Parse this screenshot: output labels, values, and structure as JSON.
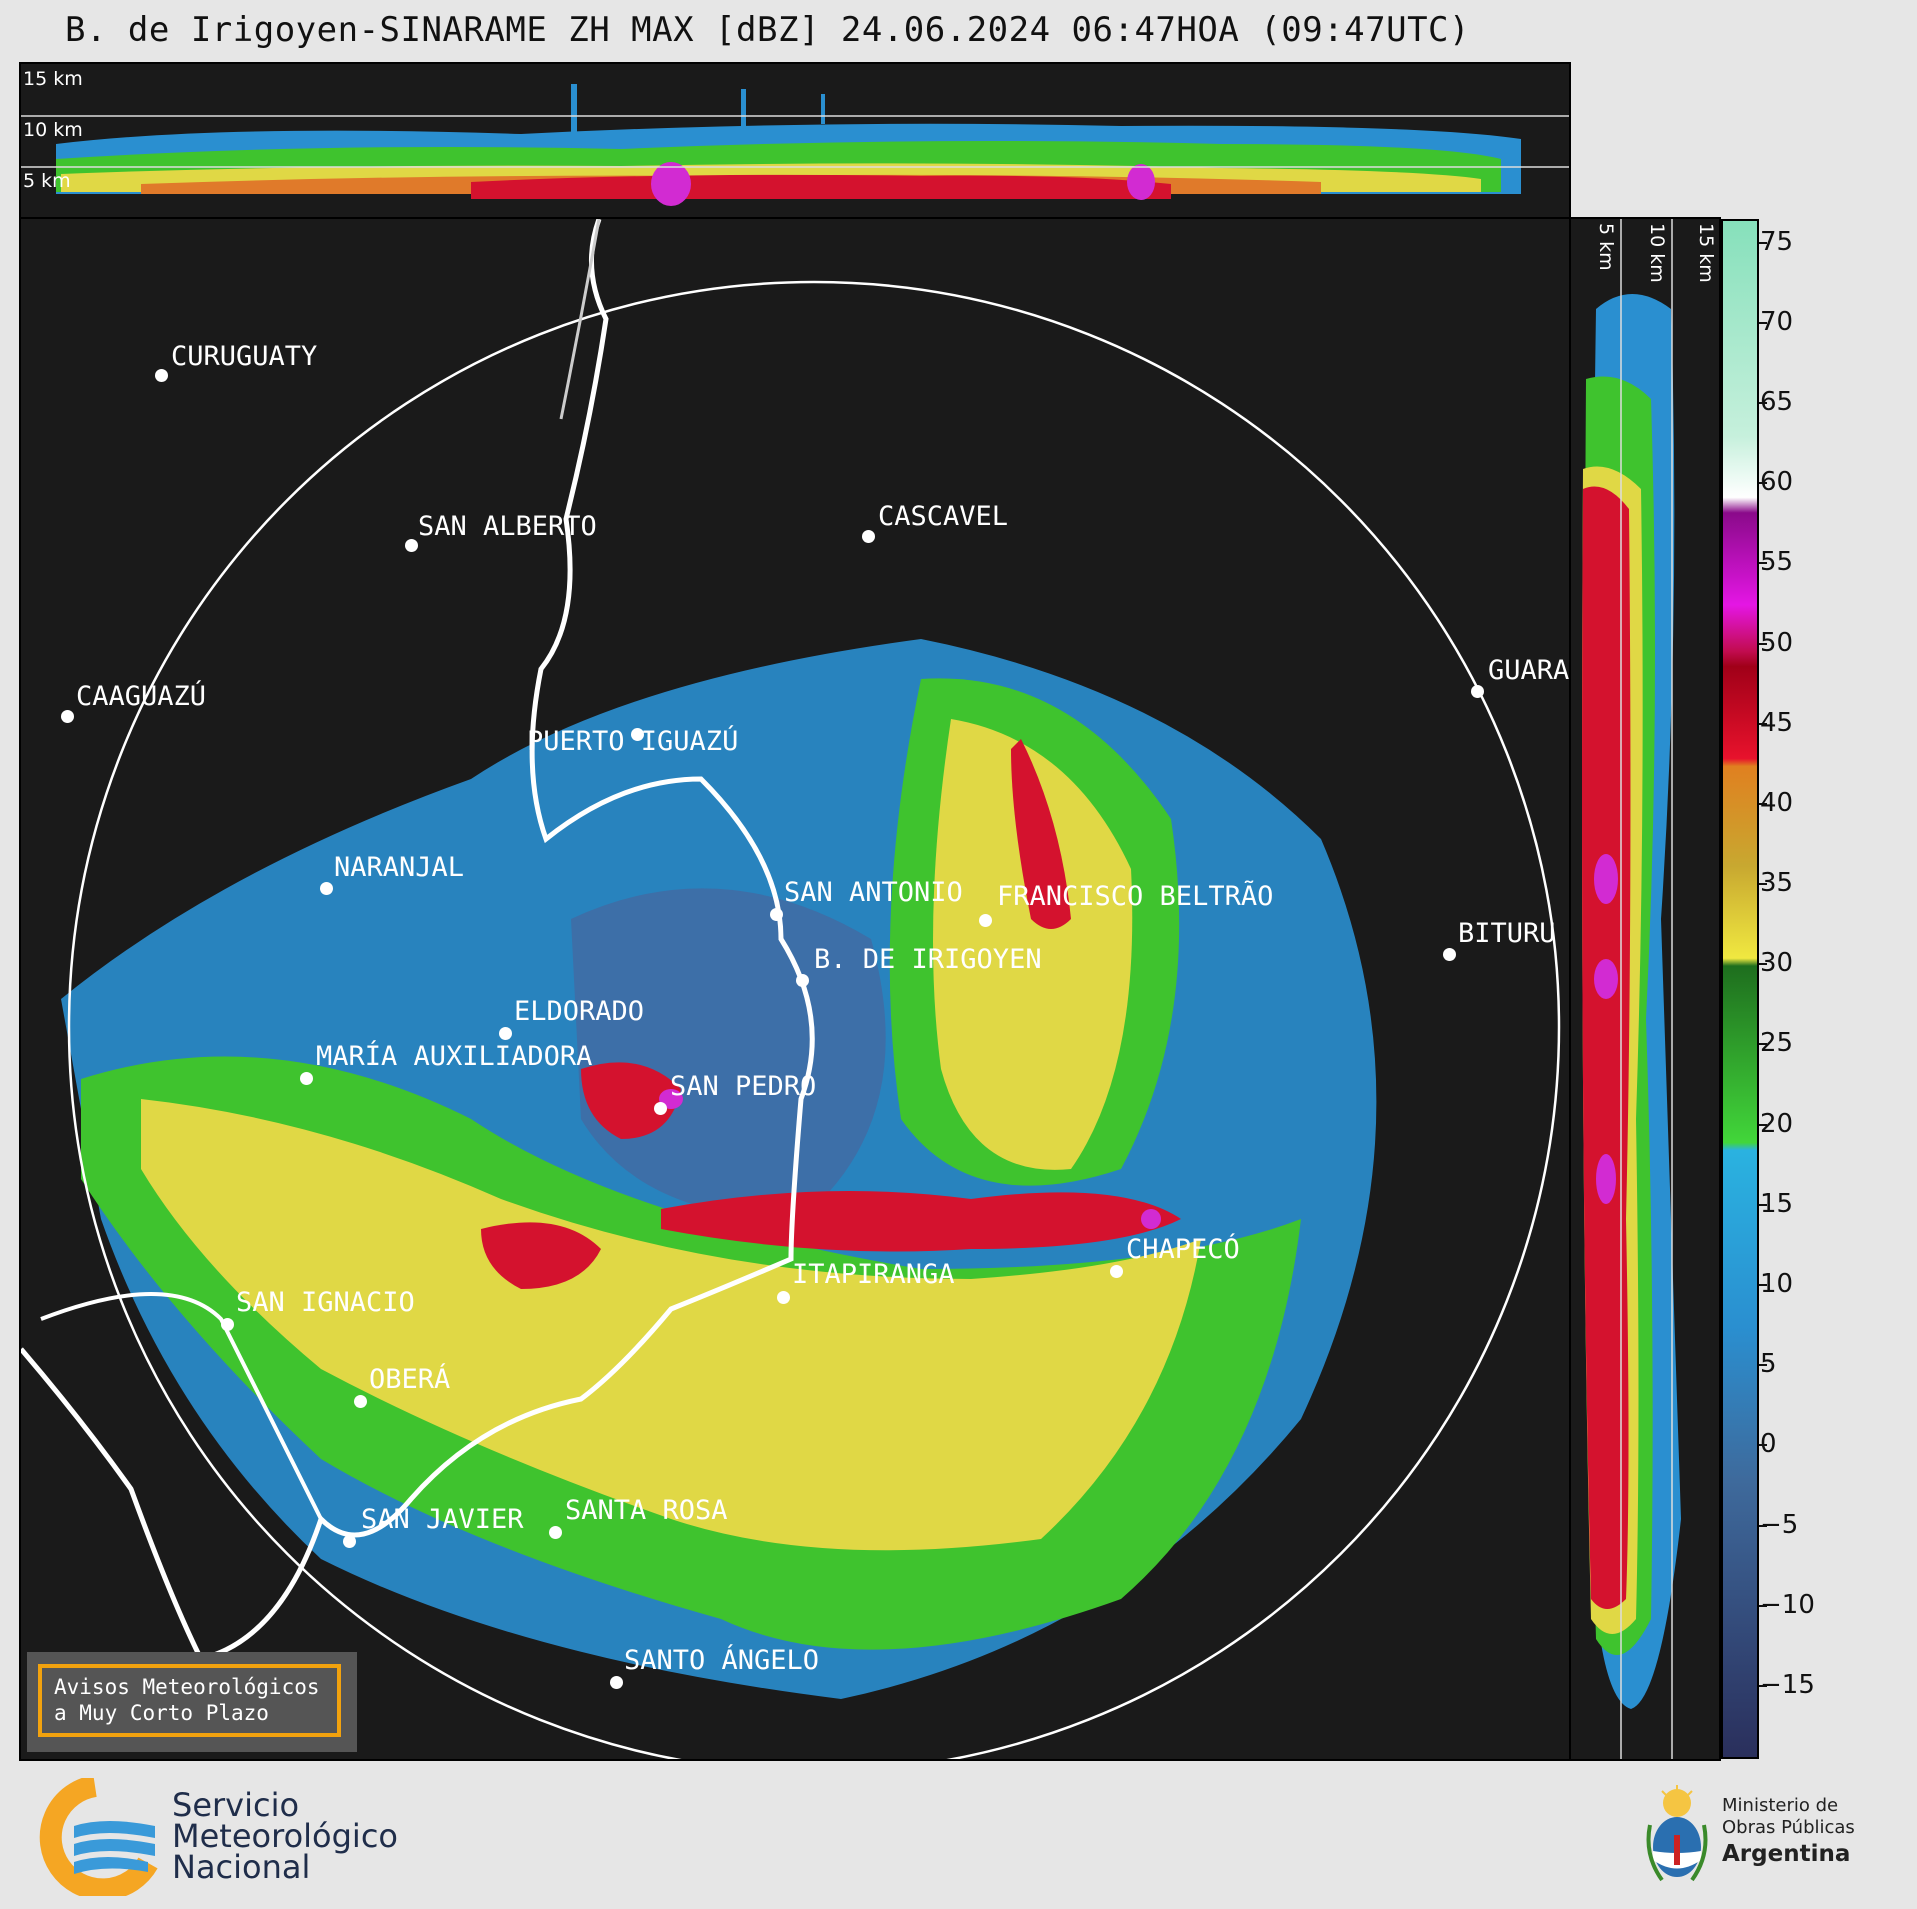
{
  "header": {
    "title": "B. de Irigoyen-SINARAME ZH MAX [dBZ] 24.06.2024 06:47HOA (09:47UTC)"
  },
  "top_panel": {
    "height_labels": [
      "15 km",
      "10 km",
      "5 km"
    ]
  },
  "side_panel": {
    "height_labels": [
      "5 km",
      "10 km",
      "15 km"
    ]
  },
  "colorbar": {
    "unit": "dBZ",
    "ticks": [
      "75",
      "70",
      "65",
      "60",
      "55",
      "50",
      "45",
      "40",
      "35",
      "30",
      "25",
      "20",
      "15",
      "10",
      "5",
      "0",
      "−5",
      "−10",
      "−15"
    ],
    "range": [
      -20,
      77
    ]
  },
  "map": {
    "radar_site": "B. DE IRIGOYEN",
    "cities": [
      {
        "name": "CURUGUATY"
      },
      {
        "name": "SAN ALBERTO"
      },
      {
        "name": "CASCAVEL"
      },
      {
        "name": "CAAGUAZÚ"
      },
      {
        "name": "GUARA"
      },
      {
        "name": "PUERTO IGUAZÚ"
      },
      {
        "name": "NARANJAL"
      },
      {
        "name": "SAN ANTONIO"
      },
      {
        "name": "FRANCISCO BELTRÃO"
      },
      {
        "name": "BITURU"
      },
      {
        "name": "B. DE IRIGOYEN"
      },
      {
        "name": "ELDORADO"
      },
      {
        "name": "MARÍA AUXILIADORA"
      },
      {
        "name": "SAN PEDRO"
      },
      {
        "name": "ITAPIRANGA"
      },
      {
        "name": "CHAPECÓ"
      },
      {
        "name": "SAN IGNACIO"
      },
      {
        "name": "OBERÁ"
      },
      {
        "name": "SAN JAVIER"
      },
      {
        "name": "SANTA ROSA"
      },
      {
        "name": "SANTO ÁNGELO"
      }
    ]
  },
  "notice": {
    "line1": "Avisos Meteorológicos",
    "line2": "a Muy Corto Plazo"
  },
  "footer": {
    "smn_line1": "Servicio",
    "smn_line2": "Meteorológico",
    "smn_line3": "Nacional",
    "ministry_line1": "Ministerio de",
    "ministry_line2": "Obras Públicas",
    "ministry_line3": "Argentina"
  },
  "colors": {
    "panel_bg": "#1a1a1a",
    "light_blue": "#2a8fd0",
    "green": "#3fc32e",
    "yellow": "#e0d845",
    "red": "#d4122e",
    "magenta": "#d22bd2",
    "accent_orange": "#f2a20e"
  }
}
